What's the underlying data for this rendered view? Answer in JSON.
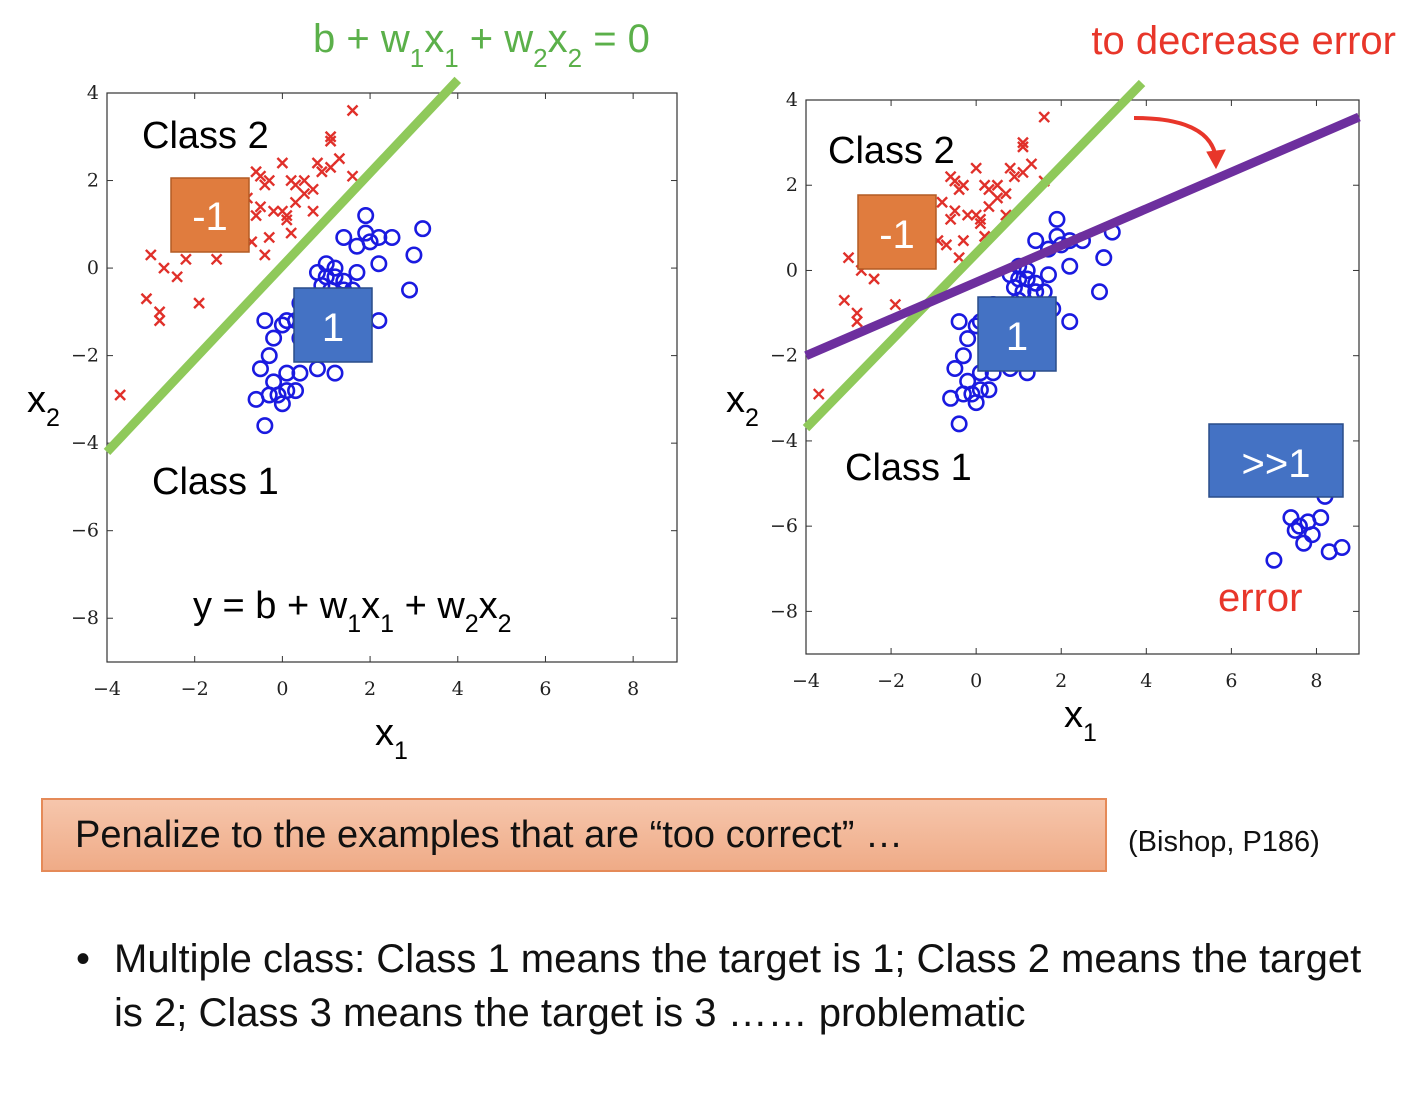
{
  "chart_data": [
    {
      "type": "scatter",
      "title": "b + w1x1 + w2x2 = 0",
      "xlabel": "x1",
      "ylabel": "x2",
      "xlim": [
        -4,
        9
      ],
      "ylim": [
        -9,
        4
      ],
      "xticks": [
        -4,
        -2,
        0,
        2,
        4,
        6,
        8
      ],
      "yticks": [
        4,
        2,
        0,
        -2,
        -4,
        -6,
        -8
      ],
      "tick_labels_x": [
        "−4",
        "−2",
        "0",
        "2",
        "4",
        "6",
        "8"
      ],
      "tick_labels_y": [
        "4",
        "2",
        "0",
        "−2",
        "−4",
        "−6",
        "−8"
      ],
      "annotations": {
        "class2": "Class 2",
        "class1": "Class 1",
        "box_neg": "-1",
        "box_pos": "1",
        "equation": "y = b + w1x1 + w2x2"
      },
      "boundary": {
        "name": "b + w1x1 + w2x2 = 0",
        "color": "#8fc95a",
        "x": [
          -4,
          4
        ],
        "y": [
          -4.2,
          4.3
        ]
      },
      "series": [
        {
          "name": "Class 2",
          "marker": "x",
          "color": "#e0302a",
          "points": [
            [
              -3.7,
              -2.9
            ],
            [
              -3.1,
              -0.7
            ],
            [
              -2.8,
              -1.0
            ],
            [
              -2.8,
              -1.2
            ],
            [
              -3.0,
              0.3
            ],
            [
              -2.7,
              0.0
            ],
            [
              -2.4,
              -0.2
            ],
            [
              -2.2,
              0.2
            ],
            [
              -1.9,
              -0.8
            ],
            [
              -1.5,
              0.6
            ],
            [
              -1.5,
              0.2
            ],
            [
              -1.2,
              0.5
            ],
            [
              -1.1,
              1.0
            ],
            [
              -0.9,
              0.7
            ],
            [
              -0.7,
              0.6
            ],
            [
              -0.6,
              1.2
            ],
            [
              -0.8,
              1.6
            ],
            [
              -0.5,
              1.4
            ],
            [
              -0.6,
              2.2
            ],
            [
              -0.4,
              1.9
            ],
            [
              -0.3,
              2.0
            ],
            [
              -0.2,
              1.3
            ],
            [
              -0.3,
              0.7
            ],
            [
              0.0,
              1.3
            ],
            [
              0.1,
              1.2
            ],
            [
              0.2,
              2.0
            ],
            [
              0.3,
              1.9
            ],
            [
              0.3,
              1.5
            ],
            [
              0.1,
              1.1
            ],
            [
              0.2,
              0.8
            ],
            [
              0.5,
              2.0
            ],
            [
              0.5,
              1.7
            ],
            [
              0.7,
              1.3
            ],
            [
              0.7,
              1.8
            ],
            [
              0.8,
              2.4
            ],
            [
              0.9,
              2.2
            ],
            [
              1.1,
              2.3
            ],
            [
              1.1,
              2.9
            ],
            [
              1.1,
              3.0
            ],
            [
              1.3,
              2.5
            ],
            [
              1.6,
              2.1
            ],
            [
              1.6,
              3.6
            ],
            [
              0.0,
              2.4
            ],
            [
              -0.4,
              0.3
            ],
            [
              -0.5,
              2.1
            ]
          ]
        },
        {
          "name": "Class 1",
          "marker": "o",
          "color": "#1a1ae0",
          "points": [
            [
              -0.6,
              -3.0
            ],
            [
              -0.4,
              -3.6
            ],
            [
              -0.3,
              -2.9
            ],
            [
              -0.2,
              -2.6
            ],
            [
              0.0,
              -3.1
            ],
            [
              0.1,
              -2.4
            ],
            [
              0.1,
              -2.8
            ],
            [
              -0.1,
              -2.9
            ],
            [
              0.3,
              -2.8
            ],
            [
              -0.5,
              -2.3
            ],
            [
              -0.3,
              -2.0
            ],
            [
              -0.2,
              -1.6
            ],
            [
              -0.4,
              -1.2
            ],
            [
              0.0,
              -1.3
            ],
            [
              0.1,
              -1.2
            ],
            [
              0.3,
              -1.2
            ],
            [
              0.4,
              -0.8
            ],
            [
              0.4,
              -1.6
            ],
            [
              0.8,
              -1.2
            ],
            [
              0.8,
              -2.3
            ],
            [
              0.4,
              -2.4
            ],
            [
              1.0,
              -0.7
            ],
            [
              0.8,
              -0.1
            ],
            [
              0.9,
              -0.4
            ],
            [
              1.0,
              -0.2
            ],
            [
              1.1,
              -0.5
            ],
            [
              1.2,
              -0.2
            ],
            [
              1.2,
              0.0
            ],
            [
              1.4,
              -0.5
            ],
            [
              1.4,
              -0.3
            ],
            [
              1.5,
              -0.8
            ],
            [
              1.6,
              -0.5
            ],
            [
              1.8,
              -0.9
            ],
            [
              1.6,
              -1.1
            ],
            [
              1.5,
              -1.4
            ],
            [
              2.2,
              -1.2
            ],
            [
              1.2,
              -2.4
            ],
            [
              1.4,
              0.7
            ],
            [
              1.7,
              0.5
            ],
            [
              1.9,
              0.8
            ],
            [
              2.0,
              0.6
            ],
            [
              1.9,
              1.2
            ],
            [
              2.2,
              0.7
            ],
            [
              2.2,
              0.1
            ],
            [
              2.5,
              0.7
            ],
            [
              2.9,
              -0.5
            ],
            [
              3.0,
              0.3
            ],
            [
              3.2,
              0.9
            ],
            [
              1.0,
              0.1
            ],
            [
              1.7,
              -0.1
            ]
          ]
        }
      ]
    },
    {
      "type": "scatter",
      "title": "to decrease error",
      "xlabel": "x1",
      "ylabel": "x2",
      "xlim": [
        -4,
        9
      ],
      "ylim": [
        -9,
        4
      ],
      "xticks": [
        -4,
        -2,
        0,
        2,
        4,
        6,
        8
      ],
      "yticks": [
        4,
        2,
        0,
        -2,
        -4,
        -6,
        -8
      ],
      "tick_labels_x": [
        "−4",
        "−2",
        "0",
        "2",
        "4",
        "6",
        "8"
      ],
      "tick_labels_y": [
        "4",
        "2",
        "0",
        "−2",
        "−4",
        "−6",
        "−8"
      ],
      "annotations": {
        "class2": "Class 2",
        "class1": "Class 1",
        "box_neg": "-1",
        "box_pos": "1",
        "box_far": ">>1",
        "error": "error",
        "decrease": "to decrease error"
      },
      "boundary": {
        "color": "#8fc95a",
        "x": [
          -4,
          3.9
        ],
        "y": [
          -3.7,
          4.4
        ]
      },
      "boundary_new": {
        "color": "#6d2f9e",
        "x": [
          -4,
          9
        ],
        "y": [
          -2.0,
          3.6
        ]
      },
      "series": [
        {
          "name": "Class 2",
          "marker": "x",
          "color": "#e0302a",
          "points": [
            [
              -3.7,
              -2.9
            ],
            [
              -3.1,
              -0.7
            ],
            [
              -2.8,
              -1.0
            ],
            [
              -2.8,
              -1.2
            ],
            [
              -3.0,
              0.3
            ],
            [
              -2.7,
              0.0
            ],
            [
              -2.4,
              -0.2
            ],
            [
              -2.2,
              0.2
            ],
            [
              -1.9,
              -0.8
            ],
            [
              -1.5,
              0.6
            ],
            [
              -1.5,
              0.2
            ],
            [
              -1.2,
              0.5
            ],
            [
              -1.1,
              1.0
            ],
            [
              -0.9,
              0.7
            ],
            [
              -0.7,
              0.6
            ],
            [
              -0.6,
              1.2
            ],
            [
              -0.8,
              1.6
            ],
            [
              -0.5,
              1.4
            ],
            [
              -0.6,
              2.2
            ],
            [
              -0.4,
              1.9
            ],
            [
              -0.3,
              2.0
            ],
            [
              -0.2,
              1.3
            ],
            [
              -0.3,
              0.7
            ],
            [
              0.0,
              1.3
            ],
            [
              0.1,
              1.2
            ],
            [
              0.2,
              2.0
            ],
            [
              0.3,
              1.9
            ],
            [
              0.3,
              1.5
            ],
            [
              0.1,
              1.1
            ],
            [
              0.2,
              0.8
            ],
            [
              0.5,
              2.0
            ],
            [
              0.5,
              1.7
            ],
            [
              0.7,
              1.3
            ],
            [
              0.7,
              1.8
            ],
            [
              0.8,
              2.4
            ],
            [
              0.9,
              2.2
            ],
            [
              1.1,
              2.3
            ],
            [
              1.1,
              2.9
            ],
            [
              1.1,
              3.0
            ],
            [
              1.3,
              2.5
            ],
            [
              1.6,
              2.1
            ],
            [
              1.6,
              3.6
            ],
            [
              0.0,
              2.4
            ],
            [
              -0.4,
              0.3
            ],
            [
              -0.5,
              2.1
            ]
          ]
        },
        {
          "name": "Class 1",
          "marker": "o",
          "color": "#1a1ae0",
          "points": [
            [
              -0.6,
              -3.0
            ],
            [
              -0.4,
              -3.6
            ],
            [
              -0.3,
              -2.9
            ],
            [
              -0.2,
              -2.6
            ],
            [
              0.0,
              -3.1
            ],
            [
              0.1,
              -2.4
            ],
            [
              0.1,
              -2.8
            ],
            [
              -0.1,
              -2.9
            ],
            [
              0.3,
              -2.8
            ],
            [
              -0.5,
              -2.3
            ],
            [
              -0.3,
              -2.0
            ],
            [
              -0.2,
              -1.6
            ],
            [
              -0.4,
              -1.2
            ],
            [
              0.0,
              -1.3
            ],
            [
              0.1,
              -1.2
            ],
            [
              0.3,
              -1.2
            ],
            [
              0.4,
              -0.8
            ],
            [
              0.4,
              -1.6
            ],
            [
              0.8,
              -1.2
            ],
            [
              0.8,
              -2.3
            ],
            [
              0.4,
              -2.4
            ],
            [
              1.0,
              -0.7
            ],
            [
              0.8,
              -0.1
            ],
            [
              0.9,
              -0.4
            ],
            [
              1.0,
              -0.2
            ],
            [
              1.1,
              -0.5
            ],
            [
              1.2,
              -0.2
            ],
            [
              1.2,
              0.0
            ],
            [
              1.4,
              -0.5
            ],
            [
              1.4,
              -0.3
            ],
            [
              1.5,
              -0.8
            ],
            [
              1.6,
              -0.5
            ],
            [
              1.8,
              -0.9
            ],
            [
              1.6,
              -1.1
            ],
            [
              1.5,
              -1.4
            ],
            [
              2.2,
              -1.2
            ],
            [
              1.2,
              -2.4
            ],
            [
              1.4,
              0.7
            ],
            [
              1.7,
              0.5
            ],
            [
              1.9,
              0.8
            ],
            [
              2.0,
              0.6
            ],
            [
              1.9,
              1.2
            ],
            [
              2.2,
              0.7
            ],
            [
              2.2,
              0.1
            ],
            [
              2.5,
              0.7
            ],
            [
              2.9,
              -0.5
            ],
            [
              3.0,
              0.3
            ],
            [
              3.2,
              0.9
            ],
            [
              1.0,
              0.1
            ],
            [
              1.7,
              -0.1
            ],
            [
              7.0,
              -6.8
            ],
            [
              7.4,
              -5.8
            ],
            [
              7.5,
              -6.1
            ],
            [
              7.7,
              -6.4
            ],
            [
              7.8,
              -5.9
            ],
            [
              7.9,
              -6.2
            ],
            [
              8.1,
              -5.8
            ],
            [
              8.2,
              -5.3
            ],
            [
              8.3,
              -6.6
            ],
            [
              8.6,
              -6.5
            ],
            [
              7.6,
              -6.0
            ]
          ]
        }
      ]
    }
  ],
  "penalize": {
    "text": "Penalize to the examples that are “too correct” …",
    "citation": "(Bishop, P186)"
  },
  "bullet": {
    "symbol": "•",
    "text": "Multiple class: Class 1 means the target is 1; Class 2 means the target is 2; Class 3 means the target is 3 …… problematic"
  },
  "colors": {
    "green_line": "#8fc95a",
    "purple_line": "#6d2f9e",
    "red_marker": "#e0302a",
    "blue_marker": "#1a1ae0",
    "orange_box": "#e07c3e",
    "blue_box": "#4472c4",
    "title_green": "#5bb04a",
    "title_red": "#e8362a"
  }
}
